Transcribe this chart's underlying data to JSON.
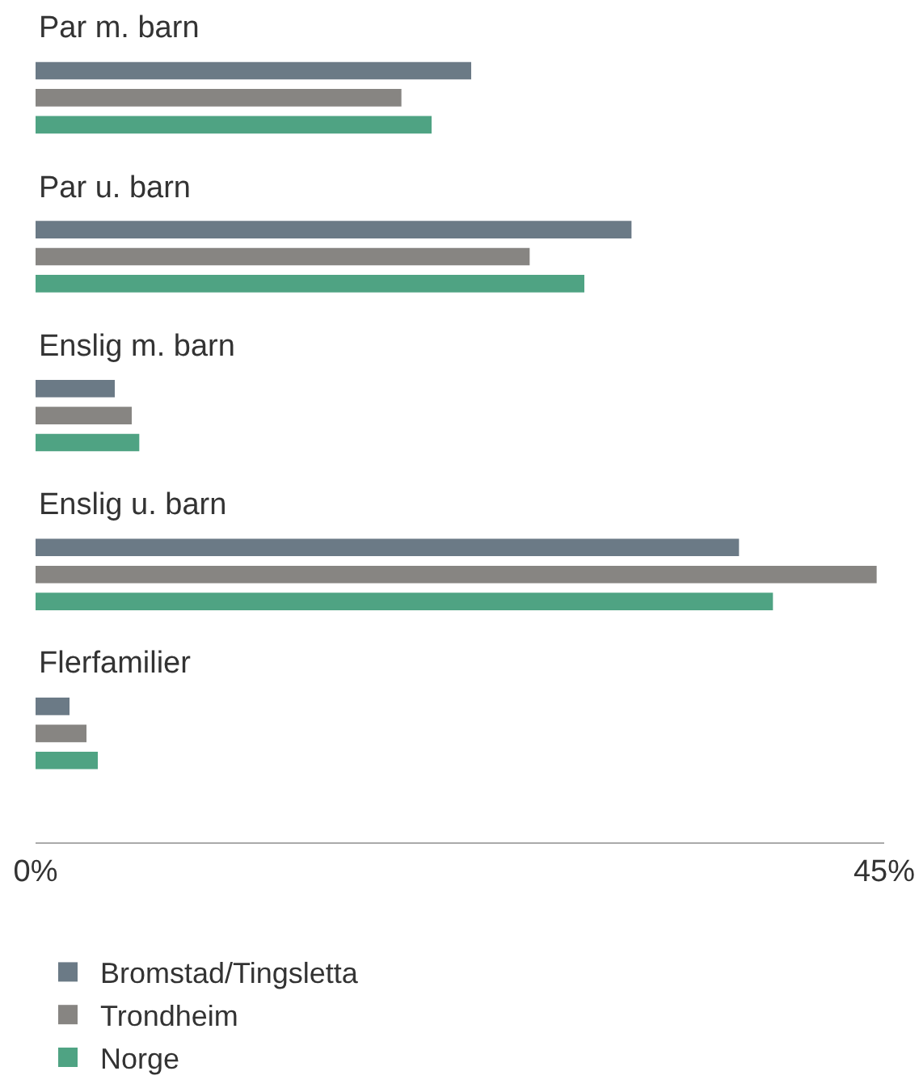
{
  "chart_data": {
    "type": "bar",
    "orientation": "horizontal",
    "categories": [
      "Par m. barn",
      "Par u. barn",
      "Enslig m. barn",
      "Enslig u. barn",
      "Flerfamilier"
    ],
    "series": [
      {
        "name": "Bromstad/Tingsletta",
        "color": "#6b7a86",
        "values": [
          23.1,
          31.6,
          4.2,
          37.3,
          1.8
        ]
      },
      {
        "name": "Trondheim",
        "color": "#878582",
        "values": [
          19.4,
          26.2,
          5.1,
          44.6,
          2.7
        ]
      },
      {
        "name": "Norge",
        "color": "#4fa383",
        "values": [
          21.0,
          29.1,
          5.5,
          39.1,
          3.3
        ]
      }
    ],
    "xlim": [
      0,
      45
    ],
    "xticks": [
      {
        "value": 0,
        "label": "0%"
      },
      {
        "value": 45,
        "label": "45%"
      }
    ],
    "legend": "bottom"
  }
}
